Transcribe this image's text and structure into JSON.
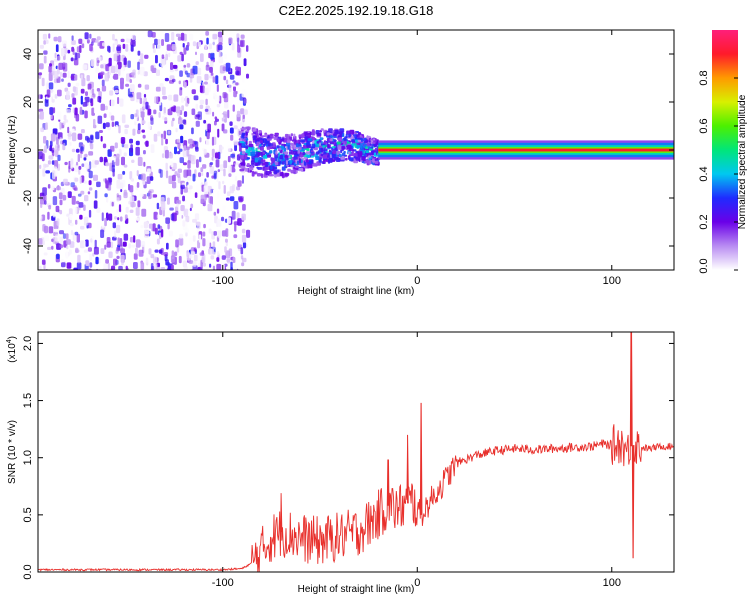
{
  "title": "C2E2.2025.192.19.18.G18",
  "chart_data": [
    {
      "type": "heatmap",
      "title": "C2E2.2025.192.19.18.G18",
      "xlabel": "Height of straight line (km)",
      "ylabel": "Frequency (Hz)",
      "xlim": [
        -195,
        132
      ],
      "ylim": [
        -50,
        50
      ],
      "x_ticks": [
        "-100",
        "0",
        "100"
      ],
      "y_ticks": [
        "-40",
        "-20",
        "0",
        "20",
        "40"
      ],
      "colorbar": {
        "label": "Normalized spectral amplitude",
        "range": [
          0.0,
          1.0
        ],
        "ticks": [
          "0.0",
          "0.2",
          "0.4",
          "0.6",
          "0.8"
        ],
        "colormap": "white-purple-blue-cyan-green-yellow-red-magenta"
      },
      "features": [
        {
          "x_range": [
            -195,
            -92
          ],
          "freq_range": [
            -50,
            50
          ],
          "amplitude": [
            0.0,
            0.3
          ]
        },
        {
          "x_range": [
            -92,
            -20
          ],
          "freq_range": [
            -10,
            10
          ],
          "amplitude": [
            0.1,
            0.5
          ]
        },
        {
          "x_range": [
            -20,
            132
          ],
          "freq_center": 0,
          "freq_halfwidth": 2,
          "amplitude": 0.9
        }
      ]
    },
    {
      "type": "line",
      "xlabel": "Height of straight line (km)",
      "ylabel": "SNR (10 * v/v)",
      "y_multiplier": "(x10",
      "y_multiplier_exp": "4",
      "xlim": [
        -195,
        132
      ],
      "ylim": [
        0,
        2.1
      ],
      "x_ticks": [
        "-100",
        "0",
        "100"
      ],
      "y_ticks": [
        "0.0",
        "0.5",
        "1.0",
        "1.5",
        "2.0"
      ],
      "color": "#e8302c",
      "x": [
        -195,
        -180,
        -160,
        -140,
        -120,
        -100,
        -90,
        -85,
        -80,
        -75,
        -70,
        -65,
        -60,
        -55,
        -50,
        -45,
        -40,
        -35,
        -30,
        -25,
        -20,
        -15,
        -10,
        -5,
        -2,
        0,
        2,
        5,
        10,
        15,
        20,
        30,
        40,
        50,
        60,
        70,
        80,
        90,
        95,
        100,
        105,
        108,
        110,
        112,
        115,
        120,
        125,
        132
      ],
      "y": [
        0.02,
        0.02,
        0.02,
        0.02,
        0.02,
        0.02,
        0.03,
        0.08,
        0.18,
        0.3,
        0.35,
        0.33,
        0.3,
        0.28,
        0.27,
        0.29,
        0.31,
        0.33,
        0.36,
        0.42,
        0.5,
        0.58,
        0.55,
        0.6,
        0.62,
        0.55,
        0.5,
        0.58,
        0.7,
        0.82,
        0.95,
        1.02,
        1.06,
        1.08,
        1.07,
        1.08,
        1.09,
        1.1,
        1.12,
        1.11,
        1.13,
        1.05,
        1.1,
        1.12,
        1.09,
        1.08,
        1.1,
        1.1
      ],
      "peaks": [
        {
          "x": -70,
          "y": 0.69
        },
        {
          "x": -15,
          "y": 0.98
        },
        {
          "x": -5,
          "y": 1.2
        },
        {
          "x": 2,
          "y": 1.48
        },
        {
          "x": 110,
          "y": 2.1
        },
        {
          "x": 111,
          "y": 0.12
        }
      ]
    }
  ]
}
